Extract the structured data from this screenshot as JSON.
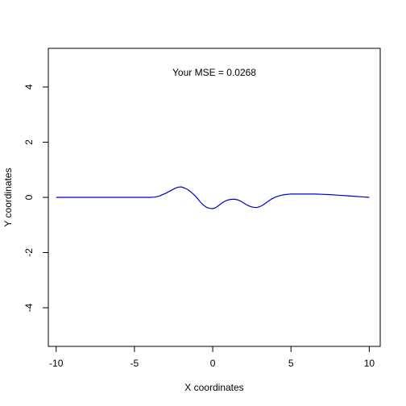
{
  "chart_data": {
    "type": "line",
    "title": "",
    "xlabel": "X coordinates",
    "ylabel": "Y coordinates",
    "annotation": "Your MSE = 0.0268",
    "xlim": [
      -10.5,
      10.7
    ],
    "ylim": [
      -5.4,
      5.4
    ],
    "x_ticks": [
      -10,
      -5,
      0,
      5,
      10
    ],
    "x_tick_labels": [
      "-10",
      "-5",
      "0",
      "5",
      "10"
    ],
    "y_ticks": [
      -4,
      -2,
      0,
      2,
      4
    ],
    "y_tick_labels": [
      "-4",
      "-2",
      "0",
      "2",
      "4"
    ],
    "grid": false,
    "series": [
      {
        "color": "#0000cc",
        "x": [
          -10,
          -9,
          -8,
          -7,
          -6,
          -5,
          -4,
          -3.7,
          -3.4,
          -3.2,
          -3.0,
          -2.8,
          -2.6,
          -2.4,
          -2.2,
          -2.0,
          -1.8,
          -1.6,
          -1.4,
          -1.2,
          -1.0,
          -0.8,
          -0.6,
          -0.4,
          -0.2,
          0.0,
          0.2,
          0.4,
          0.6,
          0.8,
          1.0,
          1.2,
          1.4,
          1.6,
          1.8,
          2.0,
          2.2,
          2.4,
          2.6,
          2.8,
          3.0,
          3.2,
          3.4,
          3.6,
          3.8,
          4.0,
          4.2,
          4.4,
          4.6,
          4.8,
          5.0,
          5.5,
          6.0,
          6.5,
          7.0,
          7.5,
          8.0,
          8.5,
          9.0,
          9.5,
          10.0
        ],
        "y": [
          0,
          0,
          0,
          0,
          0,
          0,
          0,
          0.01,
          0.05,
          0.1,
          0.15,
          0.21,
          0.27,
          0.33,
          0.37,
          0.38,
          0.34,
          0.28,
          0.2,
          0.1,
          -0.02,
          -0.16,
          -0.28,
          -0.36,
          -0.4,
          -0.41,
          -0.37,
          -0.29,
          -0.2,
          -0.13,
          -0.09,
          -0.07,
          -0.07,
          -0.09,
          -0.14,
          -0.21,
          -0.28,
          -0.33,
          -0.36,
          -0.37,
          -0.34,
          -0.28,
          -0.2,
          -0.12,
          -0.05,
          0.01,
          0.05,
          0.08,
          0.1,
          0.11,
          0.12,
          0.12,
          0.12,
          0.12,
          0.11,
          0.1,
          0.08,
          0.06,
          0.04,
          0.02,
          0.0
        ]
      }
    ]
  }
}
